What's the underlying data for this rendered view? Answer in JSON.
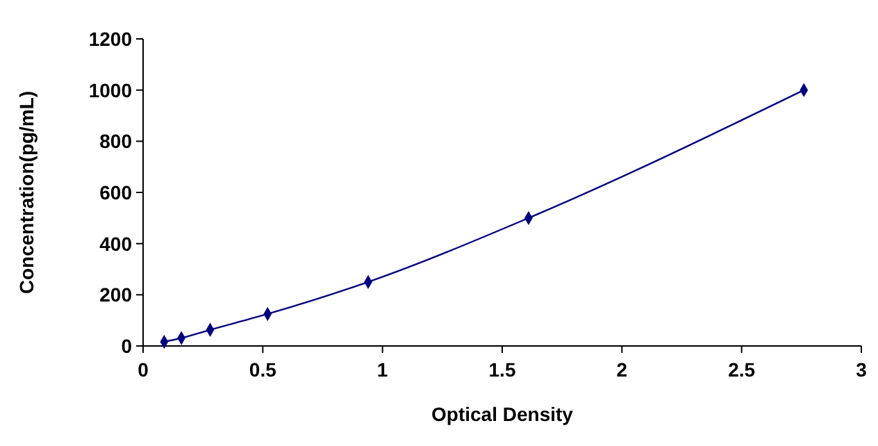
{
  "chart_data": {
    "type": "line",
    "xlabel": "Optical Density",
    "ylabel": "Concentration(pg/mL)",
    "series": [
      {
        "color": "#00007f",
        "x": [
          0.088,
          0.16,
          0.28,
          0.52,
          0.94,
          1.61,
          2.76
        ],
        "values": [
          16,
          31,
          63,
          125,
          250,
          500,
          1000
        ]
      }
    ],
    "xlim": [
      0,
      3
    ],
    "xticks": [
      0,
      0.5,
      1,
      1.5,
      2,
      2.5,
      3
    ],
    "ylim": [
      0,
      1200
    ],
    "yticks": [
      0,
      200,
      400,
      600,
      800,
      1000,
      1200
    ],
    "grid": false,
    "marker": "diamond",
    "line_style": "solid"
  }
}
